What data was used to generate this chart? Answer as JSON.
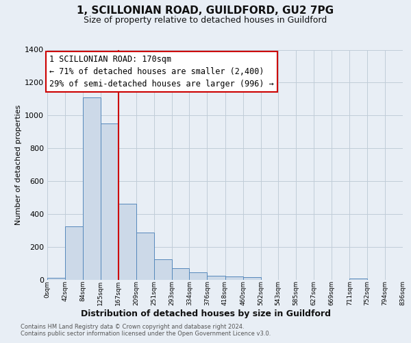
{
  "title": "1, SCILLONIAN ROAD, GUILDFORD, GU2 7PG",
  "subtitle": "Size of property relative to detached houses in Guildford",
  "xlabel": "Distribution of detached houses by size in Guildford",
  "ylabel": "Number of detached properties",
  "footnote1": "Contains HM Land Registry data © Crown copyright and database right 2024.",
  "footnote2": "Contains public sector information licensed under the Open Government Licence v3.0.",
  "bin_edges": [
    0,
    42,
    84,
    125,
    167,
    209,
    251,
    293,
    334,
    376,
    418,
    460,
    502,
    543,
    585,
    627,
    669,
    711,
    752,
    794,
    836
  ],
  "bin_labels": [
    "0sqm",
    "42sqm",
    "84sqm",
    "125sqm",
    "167sqm",
    "209sqm",
    "251sqm",
    "293sqm",
    "334sqm",
    "376sqm",
    "418sqm",
    "460sqm",
    "502sqm",
    "543sqm",
    "585sqm",
    "627sqm",
    "669sqm",
    "711sqm",
    "752sqm",
    "794sqm",
    "836sqm"
  ],
  "counts": [
    10,
    325,
    1110,
    950,
    460,
    285,
    125,
    70,
    45,
    22,
    18,
    15,
    0,
    0,
    0,
    0,
    0,
    5,
    0,
    0
  ],
  "bar_color": "#ccd9e8",
  "bar_edge_color": "#5588bb",
  "vline_x": 167,
  "vline_color": "#cc0000",
  "annotation_title": "1 SCILLONIAN ROAD: 170sqm",
  "annotation_line1": "← 71% of detached houses are smaller (2,400)",
  "annotation_line2": "29% of semi-detached houses are larger (996) →",
  "annotation_box_edge": "#cc0000",
  "ylim": [
    0,
    1400
  ],
  "yticks": [
    0,
    200,
    400,
    600,
    800,
    1000,
    1200,
    1400
  ],
  "bg_color": "#e8eef5",
  "plot_bg_color": "#e8eef5",
  "grid_color": "#c0ccd8",
  "title_fontsize": 11,
  "subtitle_fontsize": 9
}
